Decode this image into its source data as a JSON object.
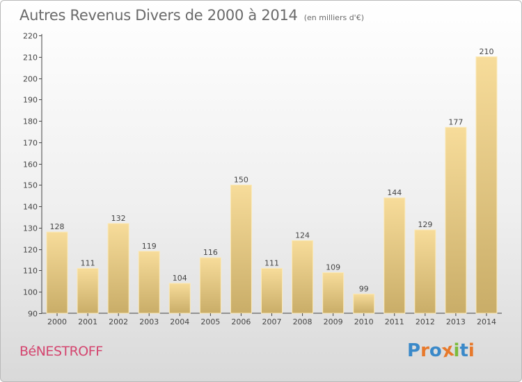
{
  "header": {
    "title": "Autres Revenus Divers de 2000 à 2014",
    "subtitle": "(en milliers d'€)"
  },
  "footer": {
    "commune": "BéNESTROFF",
    "logo": "Proxiti"
  },
  "colors": {
    "bar_top": "#f7dc9a",
    "bar_bottom": "#c9ad68",
    "bar_edge": "#fbe9b8",
    "commune_text": "#d4456f",
    "logo_letters": [
      "#3a89c9",
      "#e7792b",
      "#3a89c9",
      "#e7792b",
      "#7cbb3c",
      "#3a89c9",
      "#e7792b"
    ]
  },
  "chart_data": {
    "type": "bar",
    "title": "Autres Revenus Divers de 2000 à 2014",
    "subtitle": "(en milliers d'€)",
    "xlabel": "",
    "ylabel": "",
    "ylim": [
      90,
      220
    ],
    "yticks": [
      90,
      100,
      110,
      120,
      130,
      140,
      150,
      160,
      170,
      180,
      190,
      200,
      210,
      220
    ],
    "grid": false,
    "legend": "none",
    "categories": [
      "2000",
      "2001",
      "2002",
      "2003",
      "2004",
      "2005",
      "2006",
      "2007",
      "2008",
      "2009",
      "2010",
      "2011",
      "2012",
      "2013",
      "2014"
    ],
    "values": [
      128,
      111,
      132,
      119,
      104,
      116,
      150,
      111,
      124,
      109,
      99,
      144,
      129,
      177,
      210
    ],
    "data_labels": [
      "128",
      "111",
      "132",
      "119",
      "104",
      "116",
      "150",
      "111",
      "124",
      "109",
      "99",
      "144",
      "129",
      "177",
      "210"
    ]
  }
}
